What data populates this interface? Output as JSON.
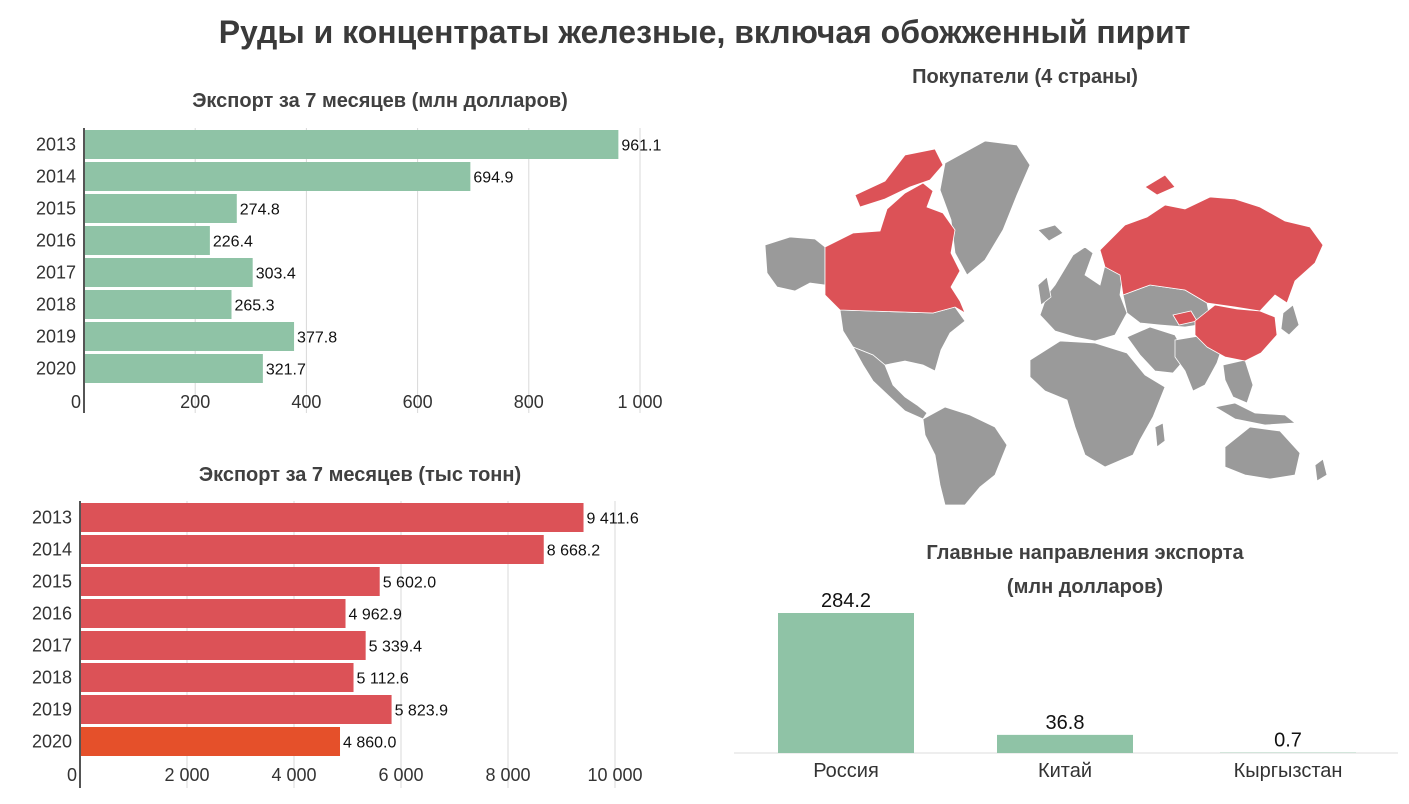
{
  "page": {
    "title": "Руды и концентраты железные, включая обожженный пирит"
  },
  "colors": {
    "green": "#8fc3a6",
    "red": "#dc5257",
    "orange": "#e5502a",
    "gray": "#9a9a9a"
  },
  "chart_data": [
    {
      "type": "bar",
      "orientation": "horizontal",
      "title": "Экспорт за 7 месяцев (млн долларов)",
      "categories": [
        "2013",
        "2014",
        "2015",
        "2016",
        "2017",
        "2018",
        "2019",
        "2020"
      ],
      "values": [
        961.1,
        694.9,
        274.8,
        226.4,
        303.4,
        265.3,
        377.8,
        321.7
      ],
      "value_labels": [
        "961.1",
        "694.9",
        "274.8",
        "226.4",
        "303.4",
        "265.3",
        "377.8",
        "321.7"
      ],
      "xlim": [
        0,
        1000
      ],
      "xticks": [
        0,
        200,
        400,
        600,
        800,
        1000
      ],
      "xtick_labels": [
        "0",
        "200",
        "400",
        "600",
        "800",
        "1 000"
      ],
      "grid": true,
      "color": "#8fc3a6"
    },
    {
      "type": "bar",
      "orientation": "horizontal",
      "title": "Экспорт за 7 месяцев (тыс тонн)",
      "categories": [
        "2013",
        "2014",
        "2015",
        "2016",
        "2017",
        "2018",
        "2019",
        "2020"
      ],
      "values": [
        9411.6,
        8668.2,
        5602.0,
        4962.9,
        5339.4,
        5112.6,
        5823.9,
        4860.0
      ],
      "value_labels": [
        "9 411.6",
        "8 668.2",
        "5 602.0",
        "4 962.9",
        "5 339.4",
        "5 112.6",
        "5 823.9",
        "4 860.0"
      ],
      "xlim": [
        0,
        10000
      ],
      "xticks": [
        0,
        2000,
        4000,
        6000,
        8000,
        10000
      ],
      "xtick_labels": [
        "0",
        "2 000",
        "4 000",
        "6 000",
        "8 000",
        "10 000"
      ],
      "grid": true,
      "color": "#dc5257",
      "highlight_color": "#e5502a",
      "highlight_index": 7
    },
    {
      "type": "bar",
      "orientation": "vertical",
      "title": "Главные направления экспорта",
      "subtitle": "(млн долларов)",
      "categories": [
        "Россия",
        "Китай",
        "Кыргызстан"
      ],
      "values": [
        284.2,
        36.8,
        0.7
      ],
      "value_labels": [
        "284.2",
        "36.8",
        "0.7"
      ],
      "color": "#8fc3a6"
    }
  ],
  "map": {
    "title": "Покупатели (4 страны)",
    "highlight_color": "#dc5257",
    "base_color": "#9a9a9a",
    "highlighted": [
      "Canada",
      "Russia",
      "China",
      "Kyrgyzstan"
    ]
  }
}
